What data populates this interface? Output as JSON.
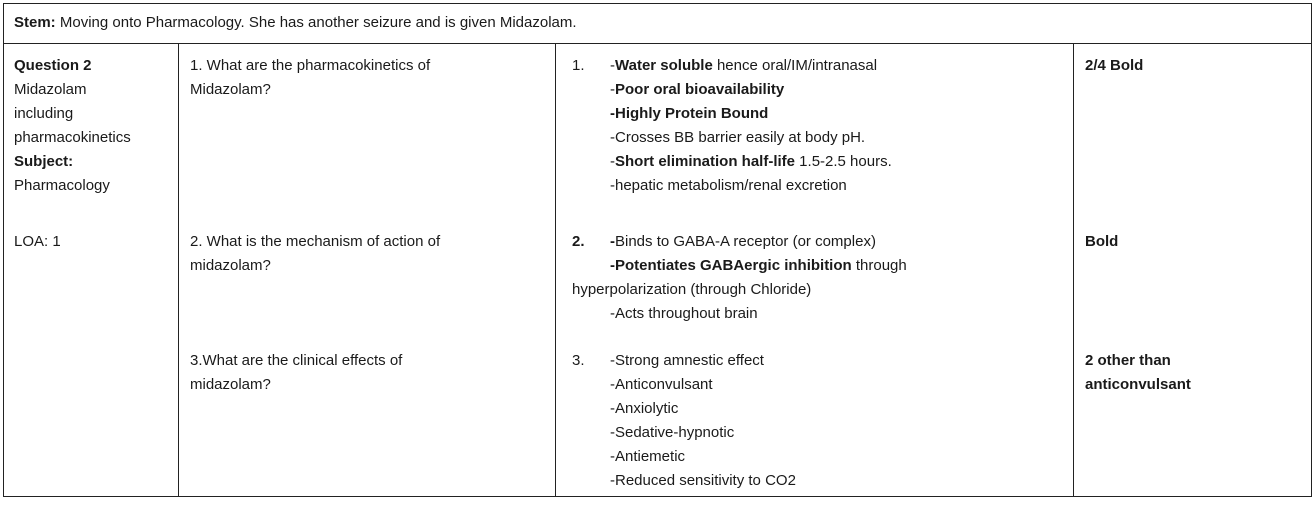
{
  "stem": {
    "label": "Stem:",
    "text": "Moving onto Pharmacology. She has another seizure and is given Midazolam."
  },
  "question_info": {
    "title": "Question 2",
    "topic_lines": [
      "Midazolam",
      "including",
      "pharmacokinetics"
    ],
    "subject_label": "Subject:",
    "subject_value": "Pharmacology",
    "loa": "LOA: 1"
  },
  "rows": [
    {
      "question_lines": [
        "1. What are the pharmacokinetics of",
        "Midazolam?"
      ],
      "answer_number": "1.",
      "answer_lines": [
        {
          "parts": [
            {
              "t": "-",
              "b": false
            },
            {
              "t": "Water soluble",
              "b": true
            },
            {
              "t": " hence oral/IM/intranasal",
              "b": false
            }
          ]
        },
        {
          "parts": [
            {
              "t": "-",
              "b": false
            },
            {
              "t": "Poor oral bioavailability",
              "b": true
            }
          ]
        },
        {
          "parts": [
            {
              "t": "-Highly Protein Bound",
              "b": true
            }
          ]
        },
        {
          "parts": [
            {
              "t": "-Crosses BB barrier easily at body pH.",
              "b": false
            }
          ]
        },
        {
          "parts": [
            {
              "t": "-",
              "b": false
            },
            {
              "t": "Short elimination half-life",
              "b": true
            },
            {
              "t": " 1.5-2.5 hours.",
              "b": false
            }
          ]
        },
        {
          "parts": [
            {
              "t": "-hepatic metabolism/renal excretion",
              "b": false
            }
          ]
        }
      ],
      "marking_lines": [
        "2/4 Bold"
      ]
    },
    {
      "question_lines": [
        "2. What is the mechanism of action of",
        "midazolam?"
      ],
      "answer_number": "2.",
      "answer_lines": [
        {
          "parts": [
            {
              "t": "-",
              "b": true
            },
            {
              "t": "Binds to GABA-A receptor (or complex)",
              "b": false
            }
          ]
        },
        {
          "parts": [
            {
              "t": "-Potentiates GABAergic inhibition",
              "b": true
            },
            {
              "t": " through",
              "b": false
            }
          ]
        },
        {
          "parts": [
            {
              "t": "hyperpolarization (through Chloride)",
              "b": false
            }
          ],
          "hang": true
        },
        {
          "parts": [
            {
              "t": "-Acts throughout brain",
              "b": false
            }
          ]
        }
      ],
      "marking_lines": [
        "Bold"
      ]
    },
    {
      "question_lines": [
        "3.What are the clinical effects of",
        "midazolam?"
      ],
      "answer_number": "3.",
      "answer_lines": [
        {
          "parts": [
            {
              "t": "-Strong amnestic effect",
              "b": false
            }
          ]
        },
        {
          "parts": [
            {
              "t": "-Anticonvulsant",
              "b": false
            }
          ]
        },
        {
          "parts": [
            {
              "t": "-Anxiolytic",
              "b": false
            }
          ]
        },
        {
          "parts": [
            {
              "t": "-Sedative-hypnotic",
              "b": false
            }
          ]
        },
        {
          "parts": [
            {
              "t": "-Antiemetic",
              "b": false
            }
          ]
        },
        {
          "parts": [
            {
              "t": "-Reduced sensitivity to CO2",
              "b": false
            }
          ]
        }
      ],
      "marking_lines": [
        "2 other than",
        "anticonvulsant"
      ]
    }
  ]
}
